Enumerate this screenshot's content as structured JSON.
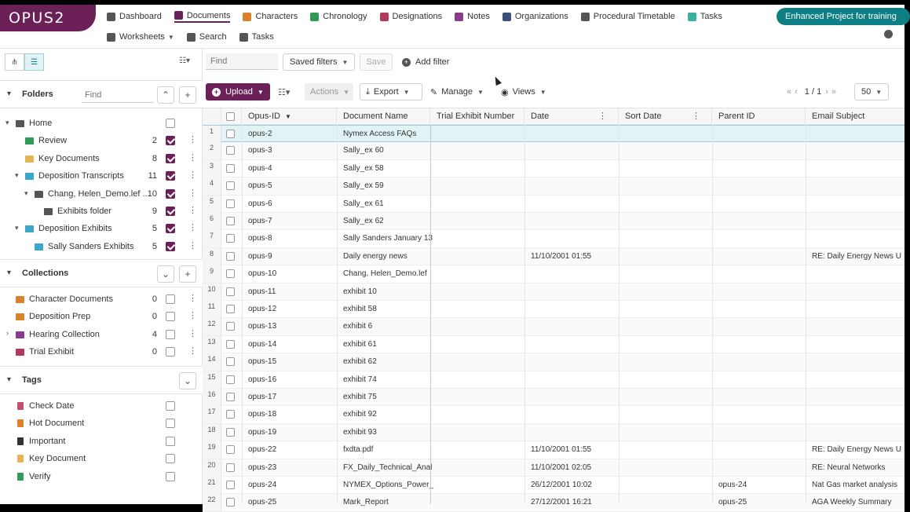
{
  "app": {
    "logo": "OPUS2"
  },
  "nav": {
    "row1": [
      {
        "label": "Dashboard",
        "icon": "home-icon",
        "color": "#555555"
      },
      {
        "label": "Documents",
        "icon": "document-icon",
        "color": "#6b2157",
        "active": true
      },
      {
        "label": "Characters",
        "icon": "people-icon",
        "color": "#d9822b"
      },
      {
        "label": "Chronology",
        "icon": "calendar-icon",
        "color": "#2e9b5b"
      },
      {
        "label": "Designations",
        "icon": "list-icon",
        "color": "#b03a5b"
      },
      {
        "label": "Notes",
        "icon": "note-icon",
        "color": "#8a3c8a"
      },
      {
        "label": "Organizations",
        "icon": "building-icon",
        "color": "#3a4f7a"
      },
      {
        "label": "Procedural Timetable",
        "icon": "timetable-icon",
        "color": "#555555"
      },
      {
        "label": "Tasks",
        "icon": "check-icon",
        "color": "#3ab09e"
      }
    ],
    "row2": [
      {
        "label": "Worksheets",
        "icon": "grid-icon",
        "color": "#555555",
        "caret": true
      },
      {
        "label": "Search",
        "icon": "search-icon",
        "color": "#555555"
      },
      {
        "label": "Tasks",
        "icon": "list-icon",
        "color": "#555555"
      }
    ],
    "project": "Enhanced Project for training"
  },
  "folders": {
    "title": "Folders",
    "find_placeholder": "Find",
    "items": [
      {
        "label": "Home",
        "count": "",
        "checked": false,
        "expand": "▾",
        "indent": 0,
        "icon": "home-icon",
        "color": "#555555"
      },
      {
        "label": "Review",
        "count": "2",
        "checked": true,
        "expand": "",
        "indent": 1,
        "icon": "folder-icon",
        "color": "#2e9b5b"
      },
      {
        "label": "Key Documents",
        "count": "8",
        "checked": true,
        "expand": "",
        "indent": 1,
        "icon": "folder-icon",
        "color": "#e6b656"
      },
      {
        "label": "Deposition Transcripts",
        "count": "11",
        "checked": true,
        "expand": "▾",
        "indent": 1,
        "icon": "folder-icon",
        "color": "#3aa7c8"
      },
      {
        "label": "Chang, Helen_Demo.lef ...",
        "count": "10",
        "checked": true,
        "expand": "▾",
        "indent": 2,
        "icon": "folder-icon",
        "color": "#555555"
      },
      {
        "label": "Exhibits folder",
        "count": "9",
        "checked": true,
        "expand": "",
        "indent": 3,
        "icon": "folder-icon",
        "color": "#555555"
      },
      {
        "label": "Deposition Exhibits",
        "count": "5",
        "checked": true,
        "expand": "▾",
        "indent": 1,
        "icon": "folder-icon",
        "color": "#3aa7c8"
      },
      {
        "label": "Sally Sanders Exhibits",
        "count": "5",
        "checked": true,
        "expand": "",
        "indent": 2,
        "icon": "folder-icon",
        "color": "#3aa7c8"
      }
    ]
  },
  "collections": {
    "title": "Collections",
    "items": [
      {
        "label": "Character Documents",
        "count": "0",
        "expand": "",
        "icon": "collection-icon",
        "color": "#d9822b"
      },
      {
        "label": "Deposition Prep",
        "count": "0",
        "expand": "",
        "icon": "collection-icon",
        "color": "#d9822b"
      },
      {
        "label": "Hearing Collection",
        "count": "4",
        "expand": "›",
        "icon": "collection-icon",
        "color": "#8a3c8a"
      },
      {
        "label": "Trial Exhibit",
        "count": "0",
        "expand": "",
        "icon": "collection-icon",
        "color": "#b03a5b"
      }
    ]
  },
  "tags": {
    "title": "Tags",
    "items": [
      {
        "label": "Check Date",
        "icon": "gift-icon",
        "color": "#c0506b"
      },
      {
        "label": "Hot Document",
        "icon": "fire-icon",
        "color": "#d9822b"
      },
      {
        "label": "Important",
        "icon": "exclamation-icon",
        "color": "#333333"
      },
      {
        "label": "Key Document",
        "icon": "key-icon",
        "color": "#e6b656"
      },
      {
        "label": "Verify",
        "icon": "clipboard-icon",
        "color": "#2e9b5b"
      }
    ]
  },
  "toolbar": {
    "find_placeholder": "Find",
    "saved_filters": "Saved filters",
    "save": "Save",
    "add_filter": "Add filter",
    "upload": "Upload",
    "actions": "Actions",
    "export": "Export",
    "manage": "Manage",
    "views": "Views",
    "page": "1 / 1",
    "page_size": "50"
  },
  "grid": {
    "columns": [
      "Opus-ID",
      "Document Name",
      "Trial Exhibit Number",
      "Date",
      "Sort Date",
      "Parent ID",
      "Email Subject"
    ],
    "rows": [
      {
        "n": "1",
        "id": "opus-2",
        "name": "Nymex Access FAQs",
        "date": "",
        "parent": "",
        "subject": ""
      },
      {
        "n": "2",
        "id": "opus-3",
        "name": "Sally_ex 60",
        "date": "",
        "parent": "",
        "subject": ""
      },
      {
        "n": "3",
        "id": "opus-4",
        "name": "Sally_ex 58",
        "date": "",
        "parent": "",
        "subject": ""
      },
      {
        "n": "4",
        "id": "opus-5",
        "name": "Sally_ex 59",
        "date": "",
        "parent": "",
        "subject": ""
      },
      {
        "n": "5",
        "id": "opus-6",
        "name": "Sally_ex 61",
        "date": "",
        "parent": "",
        "subject": ""
      },
      {
        "n": "6",
        "id": "opus-7",
        "name": "Sally_ex 62",
        "date": "",
        "parent": "",
        "subject": ""
      },
      {
        "n": "7",
        "id": "opus-8",
        "name": "Sally Sanders January 13",
        "date": "",
        "parent": "",
        "subject": ""
      },
      {
        "n": "8",
        "id": "opus-9",
        "name": "Daily energy news",
        "date": "11/10/2001 01:55",
        "parent": "",
        "subject": "RE: Daily Energy News U"
      },
      {
        "n": "9",
        "id": "opus-10",
        "name": "Chang, Helen_Demo.lef",
        "date": "",
        "parent": "",
        "subject": ""
      },
      {
        "n": "10",
        "id": "opus-11",
        "name": "exhibit 10",
        "date": "",
        "parent": "",
        "subject": ""
      },
      {
        "n": "11",
        "id": "opus-12",
        "name": "exhibit 58",
        "date": "",
        "parent": "",
        "subject": ""
      },
      {
        "n": "12",
        "id": "opus-13",
        "name": "exhibit 6",
        "date": "",
        "parent": "",
        "subject": ""
      },
      {
        "n": "13",
        "id": "opus-14",
        "name": "exhibit 61",
        "date": "",
        "parent": "",
        "subject": ""
      },
      {
        "n": "14",
        "id": "opus-15",
        "name": "exhibit 62",
        "date": "",
        "parent": "",
        "subject": ""
      },
      {
        "n": "15",
        "id": "opus-16",
        "name": "exhibit 74",
        "date": "",
        "parent": "",
        "subject": ""
      },
      {
        "n": "16",
        "id": "opus-17",
        "name": "exhibit 75",
        "date": "",
        "parent": "",
        "subject": ""
      },
      {
        "n": "17",
        "id": "opus-18",
        "name": "exhibit 92",
        "date": "",
        "parent": "",
        "subject": ""
      },
      {
        "n": "18",
        "id": "opus-19",
        "name": "exhibit 93",
        "date": "",
        "parent": "",
        "subject": ""
      },
      {
        "n": "19",
        "id": "opus-22",
        "name": "fxdta.pdf",
        "date": "11/10/2001 01:55",
        "parent": "",
        "subject": "RE: Daily Energy News U"
      },
      {
        "n": "20",
        "id": "opus-23",
        "name": "FX_Daily_Technical_Anal",
        "date": "11/10/2001 02:05",
        "parent": "",
        "subject": "RE: Neural Networks"
      },
      {
        "n": "21",
        "id": "opus-24",
        "name": "NYMEX_Options_Power_",
        "date": "26/12/2001 10:02",
        "parent": "opus-24",
        "subject": "Nat Gas market analysis"
      },
      {
        "n": "22",
        "id": "opus-25",
        "name": "Mark_Report",
        "date": "27/12/2001 16:21",
        "parent": "opus-25",
        "subject": "AGA Weekly Summary"
      }
    ]
  },
  "colors": {
    "brand": "#6b2157",
    "teal": "#0f7f86",
    "selected_row": "#e2f3f5"
  }
}
